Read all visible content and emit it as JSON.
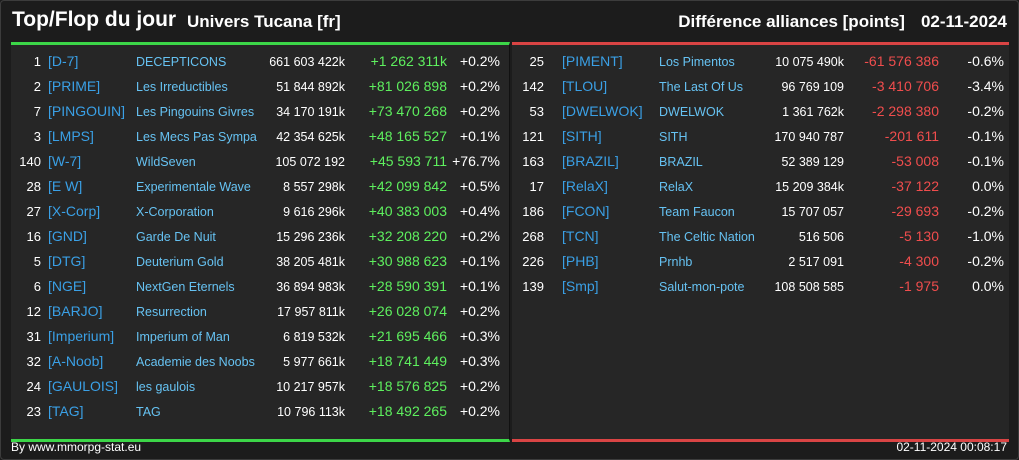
{
  "header": {
    "title": "Top/Flop du jour",
    "universe": "Univers Tucana [fr]",
    "metric": "Différence alliances [points]",
    "date": "02-11-2024"
  },
  "colors": {
    "top_accent": "#3cd648",
    "flop_accent": "#d94444",
    "tag": "#3aa0e6",
    "name": "#66c2f2"
  },
  "top": [
    {
      "rank": "1",
      "tag": "[D-7]",
      "name": "DECEPTICONS",
      "points": "661 603 422k",
      "diff": "+1 262 311k",
      "pct": "+0.2%"
    },
    {
      "rank": "2",
      "tag": "[PRIME]",
      "name": "Les Irreductibles",
      "points": "51 844 892k",
      "diff": "+81 026 898",
      "pct": "+0.2%"
    },
    {
      "rank": "7",
      "tag": "[PINGOUIN]",
      "name": "Les Pingouins Givres",
      "points": "34 170 191k",
      "diff": "+73 470 268",
      "pct": "+0.2%"
    },
    {
      "rank": "3",
      "tag": "[LMPS]",
      "name": "Les Mecs Pas Sympa",
      "points": "42 354 625k",
      "diff": "+48 165 527",
      "pct": "+0.1%"
    },
    {
      "rank": "140",
      "tag": "[W-7]",
      "name": "WildSeven",
      "points": "105 072 192",
      "diff": "+45 593 711",
      "pct": "+76.7%"
    },
    {
      "rank": "28",
      "tag": "[E W]",
      "name": "Experimentale Wave",
      "points": "8 557 298k",
      "diff": "+42 099 842",
      "pct": "+0.5%"
    },
    {
      "rank": "27",
      "tag": "[X-Corp]",
      "name": "X-Corporation",
      "points": "9 616 296k",
      "diff": "+40 383 003",
      "pct": "+0.4%"
    },
    {
      "rank": "16",
      "tag": "[GND]",
      "name": "Garde De Nuit",
      "points": "15 296 236k",
      "diff": "+32 208 220",
      "pct": "+0.2%"
    },
    {
      "rank": "5",
      "tag": "[DTG]",
      "name": "Deuterium Gold",
      "points": "38 205 481k",
      "diff": "+30 988 623",
      "pct": "+0.1%"
    },
    {
      "rank": "6",
      "tag": "[NGE]",
      "name": "NextGen Eternels",
      "points": "36 894 983k",
      "diff": "+28 590 391",
      "pct": "+0.1%"
    },
    {
      "rank": "12",
      "tag": "[BARJO]",
      "name": "Resurrection",
      "points": "17 957 811k",
      "diff": "+26 028 074",
      "pct": "+0.2%"
    },
    {
      "rank": "31",
      "tag": "[Imperium]",
      "name": "Imperium of Man",
      "points": "6 819 532k",
      "diff": "+21 695 466",
      "pct": "+0.3%"
    },
    {
      "rank": "32",
      "tag": "[A-Noob]",
      "name": "Academie des Noobs",
      "points": "5 977 661k",
      "diff": "+18 741 449",
      "pct": "+0.3%"
    },
    {
      "rank": "24",
      "tag": "[GAULOIS]",
      "name": "les gaulois",
      "points": "10 217 957k",
      "diff": "+18 576 825",
      "pct": "+0.2%"
    },
    {
      "rank": "23",
      "tag": "[TAG]",
      "name": "TAG",
      "points": "10 796 113k",
      "diff": "+18 492 265",
      "pct": "+0.2%"
    }
  ],
  "flop": [
    {
      "rank": "25",
      "tag": "[PIMENT]",
      "name": "Los Pimentos",
      "points": "10 075 490k",
      "diff": "-61 576 386",
      "pct": "-0.6%"
    },
    {
      "rank": "142",
      "tag": "[TLOU]",
      "name": "The Last Of Us",
      "points": "96 769 109",
      "diff": "-3 410 706",
      "pct": "-3.4%"
    },
    {
      "rank": "53",
      "tag": "[DWELWOK]",
      "name": "DWELWOK",
      "points": "1 361 762k",
      "diff": "-2 298 380",
      "pct": "-0.2%"
    },
    {
      "rank": "121",
      "tag": "[SITH]",
      "name": "SITH",
      "points": "170 940 787",
      "diff": "-201 611",
      "pct": "-0.1%"
    },
    {
      "rank": "163",
      "tag": "[BRAZIL]",
      "name": "BRAZIL",
      "points": "52 389 129",
      "diff": "-53 008",
      "pct": "-0.1%"
    },
    {
      "rank": "17",
      "tag": "[RelaX]",
      "name": "RelaX",
      "points": "15 209 384k",
      "diff": "-37 122",
      "pct": "0.0%"
    },
    {
      "rank": "186",
      "tag": "[FCON]",
      "name": "Team Faucon",
      "points": "15 707 057",
      "diff": "-29 693",
      "pct": "-0.2%"
    },
    {
      "rank": "268",
      "tag": "[TCN]",
      "name": "The Celtic Nation",
      "points": "516 506",
      "diff": "-5 130",
      "pct": "-1.0%"
    },
    {
      "rank": "226",
      "tag": "[PHB]",
      "name": "Prnhb",
      "points": "2 517 091",
      "diff": "-4 300",
      "pct": "-0.2%"
    },
    {
      "rank": "139",
      "tag": "[Smp]",
      "name": "Salut-mon-pote",
      "points": "108 508 585",
      "diff": "-1 975",
      "pct": "0.0%"
    }
  ],
  "footer": {
    "source": "By www.mmorpg-stat.eu",
    "timestamp": "02-11-2024 00:08:17"
  }
}
